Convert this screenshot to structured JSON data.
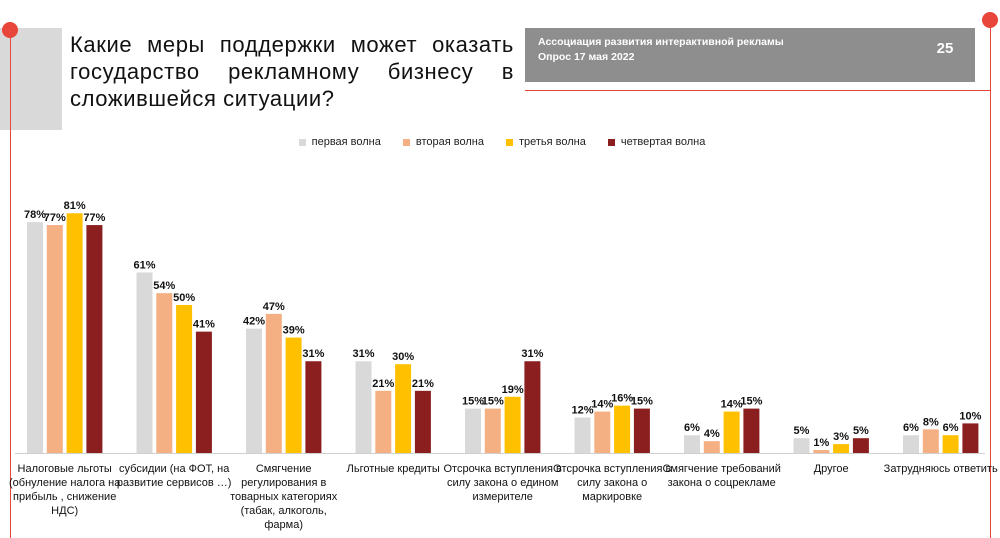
{
  "title": "Какие меры поддержки может оказать государство рекламному бизнесу в сложившейся ситуации?",
  "header": {
    "organization": "Ассоциация развития интерактивной рекламы",
    "survey_date": "Опрос 17 мая 2022",
    "page_number": "25"
  },
  "colors": {
    "accent": "#e8463a",
    "header_bg": "#8e8e8e",
    "title_block": "#d9d9d9"
  },
  "legend": {
    "position": "top-center",
    "items": [
      {
        "label": "первая волна",
        "color": "#d9d9d9"
      },
      {
        "label": "вторая волна",
        "color": "#f4b083"
      },
      {
        "label": "третья волна",
        "color": "#ffc000"
      },
      {
        "label": "четвертая волна",
        "color": "#8b1e1e"
      }
    ]
  },
  "chart_data": {
    "type": "bar",
    "title": "Какие меры поддержки может оказать государство рекламному бизнесу в сложившейся ситуации?",
    "xlabel": "",
    "ylabel": "",
    "ylim": [
      0,
      100
    ],
    "grid": false,
    "value_suffix": "%",
    "categories": [
      "Налоговые льготы (обнуление налога на прибыль , снижение НДС)",
      "субсидии (на ФОТ, на развитие сервисов …)",
      "Смягчение регулирования в товарных категориях (табак, алкоголь, фарма)",
      "Льготные кредиты",
      "Отсрочка вступления в силу закона о едином измерителе",
      "Отсрочка вступления в силу закона о маркировке",
      "Смягчение требований закона о соцрекламе",
      "Другое",
      "Затрудняюсь ответить"
    ],
    "series": [
      {
        "name": "первая волна",
        "color": "#d9d9d9",
        "values": [
          78,
          61,
          42,
          31,
          15,
          12,
          6,
          5,
          6
        ]
      },
      {
        "name": "вторая волна",
        "color": "#f4b083",
        "values": [
          77,
          54,
          47,
          21,
          15,
          14,
          4,
          1,
          8
        ]
      },
      {
        "name": "третья волна",
        "color": "#ffc000",
        "values": [
          81,
          50,
          39,
          30,
          19,
          16,
          14,
          3,
          6
        ]
      },
      {
        "name": "четвертая волна",
        "color": "#8b1e1e",
        "values": [
          77,
          41,
          31,
          21,
          31,
          15,
          15,
          5,
          10
        ]
      }
    ]
  }
}
